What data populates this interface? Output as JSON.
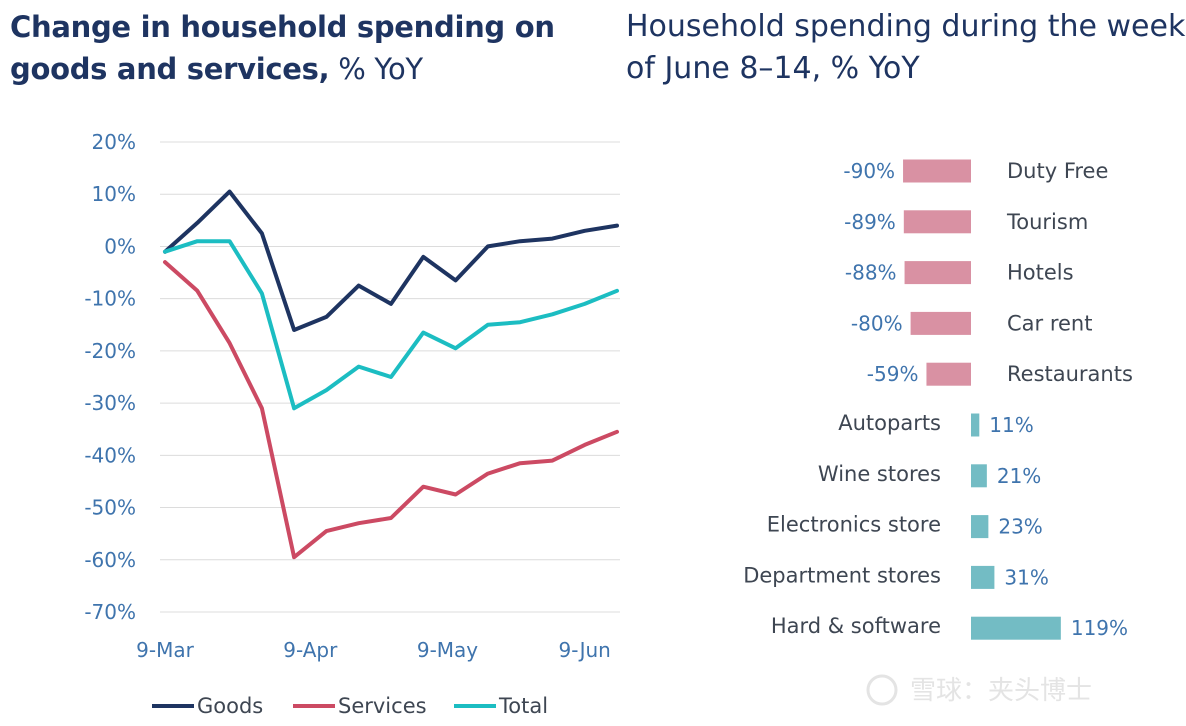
{
  "chart_data": [
    {
      "type": "line",
      "title": "Change in household spending on goods and services,",
      "title_suffix": "% YoY",
      "xlabel": "",
      "ylabel": "",
      "ylim": [
        -70,
        20
      ],
      "y_ticks": [
        "20%",
        "10%",
        "0%",
        "-10%",
        "-20%",
        "-30%",
        "-40%",
        "-50%",
        "-60%",
        "-70%"
      ],
      "x_ticks": [
        {
          "label": "9-Mar",
          "week": 0
        },
        {
          "label": "9-Apr",
          "week": 4.5
        },
        {
          "label": "9-May",
          "week": 8.75
        },
        {
          "label": "9-Jun",
          "week": 13
        }
      ],
      "grid": true,
      "legend_position": "bottom",
      "x": [
        0,
        1,
        2,
        3,
        4,
        5,
        6,
        7,
        8,
        9,
        10,
        11,
        12,
        13,
        14
      ],
      "series": [
        {
          "name": "Goods",
          "color": "#1e3461",
          "values": [
            -1,
            4.5,
            10.5,
            2.5,
            -16,
            -13.5,
            -7.5,
            -11,
            -2,
            -6.5,
            0,
            1,
            1.5,
            3,
            4
          ]
        },
        {
          "name": "Services",
          "color": "#cc4a63",
          "values": [
            -3,
            -8.5,
            -18.5,
            -31,
            -59.5,
            -54.5,
            -53,
            -52,
            -46,
            -47.5,
            -43.5,
            -41.5,
            -41,
            -38,
            -35.5
          ]
        },
        {
          "name": "Total",
          "color": "#1cbdc2",
          "values": [
            -1,
            1,
            1,
            -9,
            -31,
            -27.5,
            -23,
            -25,
            -16.5,
            -19.5,
            -15,
            -14.5,
            -13,
            -11,
            -8.5
          ]
        }
      ]
    },
    {
      "type": "bar",
      "orientation": "horizontal",
      "title": "Household spending during the week of June 8–14, % YoY",
      "categories": [
        "Duty Free",
        "Tourism",
        "Hotels",
        "Car rent",
        "Restaurants",
        "Autoparts",
        "Wine stores",
        "Electronics store",
        "Department stores",
        "Hard & software"
      ],
      "values": [
        -90,
        -89,
        -88,
        -80,
        -59,
        11,
        21,
        23,
        31,
        119
      ],
      "value_labels": [
        "-90%",
        "-89%",
        "-88%",
        "-80%",
        "-59%",
        "11%",
        "21%",
        "23%",
        "31%",
        "119%"
      ],
      "negative_color": "#d991a3",
      "positive_color": "#73bcc4"
    }
  ],
  "watermark": "雪球：夹头博士"
}
